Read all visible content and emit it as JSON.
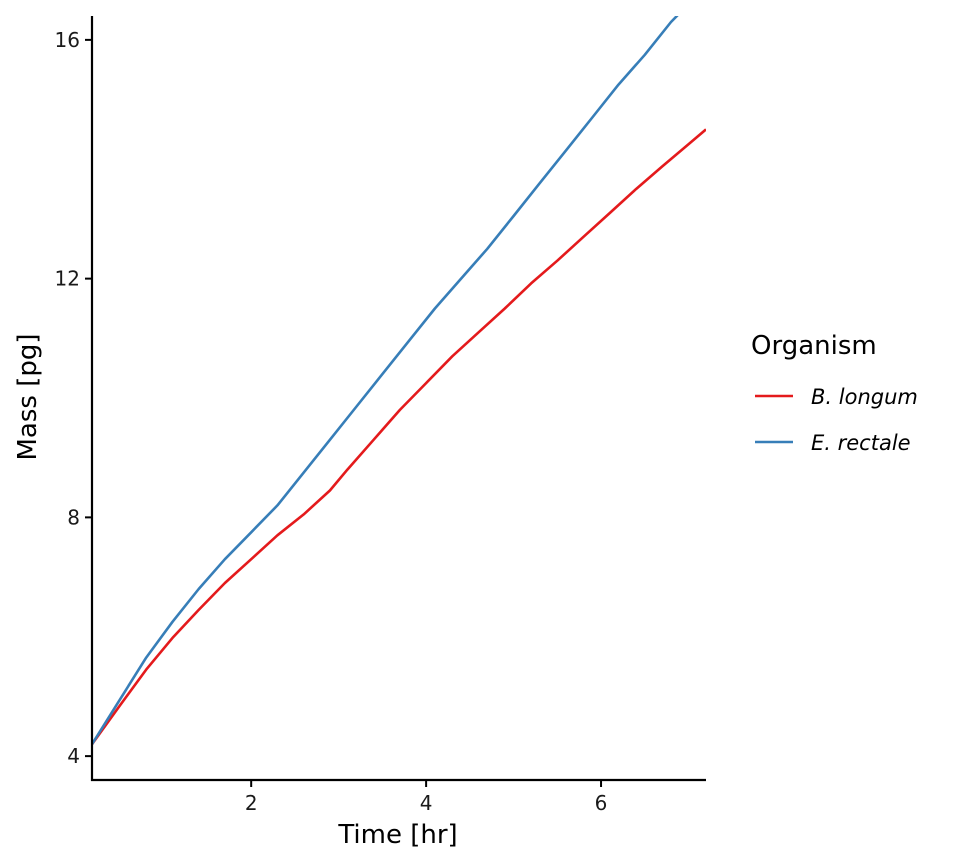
{
  "chart_data": {
    "type": "line",
    "xlabel": "Time [hr]",
    "ylabel": "Mass [pg]",
    "xlim": [
      0.18,
      7.2
    ],
    "ylim": [
      3.6,
      16.4
    ],
    "x_ticks": [
      2,
      4,
      6
    ],
    "y_ticks": [
      4,
      8,
      12,
      16
    ],
    "grid": false,
    "legend": {
      "title": "Organism",
      "placement": "right"
    },
    "series": [
      {
        "name": "B. longum",
        "color": "#e41a1c",
        "x": [
          0.18,
          0.5,
          0.8,
          1.1,
          1.4,
          1.7,
          2.0,
          2.3,
          2.6,
          2.9,
          3.1,
          3.4,
          3.7,
          4.0,
          4.3,
          4.6,
          4.9,
          5.2,
          5.5,
          5.8,
          6.1,
          6.4,
          6.7,
          7.0,
          7.2
        ],
        "y": [
          4.2,
          4.85,
          5.45,
          5.98,
          6.45,
          6.9,
          7.3,
          7.7,
          8.05,
          8.45,
          8.8,
          9.3,
          9.8,
          10.25,
          10.7,
          11.1,
          11.5,
          11.92,
          12.3,
          12.7,
          13.1,
          13.5,
          13.88,
          14.25,
          14.5
        ]
      },
      {
        "name": "E. rectale",
        "color": "#377eb8",
        "x": [
          0.18,
          0.5,
          0.8,
          1.1,
          1.4,
          1.7,
          2.0,
          2.3,
          2.6,
          2.9,
          3.2,
          3.5,
          3.8,
          4.1,
          4.4,
          4.7,
          5.0,
          5.3,
          5.6,
          5.9,
          6.2,
          6.5,
          6.8,
          7.0,
          7.2
        ],
        "y": [
          4.2,
          4.95,
          5.65,
          6.25,
          6.8,
          7.3,
          7.75,
          8.2,
          8.75,
          9.3,
          9.85,
          10.4,
          10.95,
          11.5,
          12.0,
          12.5,
          13.05,
          13.6,
          14.15,
          14.7,
          15.25,
          15.75,
          16.3,
          16.6,
          16.95
        ]
      }
    ]
  }
}
